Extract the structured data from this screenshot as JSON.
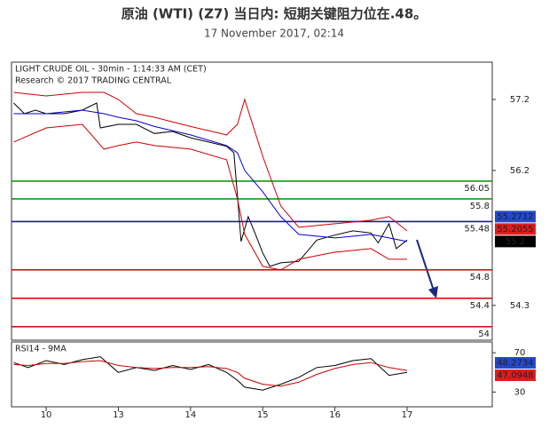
{
  "chart_data": [
    {
      "type": "line",
      "title": "原油 (WTI) (Z7) 当日内: 短期关键阻力位在.48。",
      "subtitle": "17 November 2017, 02:14",
      "annotations": [
        "LIGHT CRUDE OIL - 30min - 1:14:33 AM (CET)",
        "Research © 2017 TRADING CENTRAL"
      ],
      "xlim": [
        -0.48,
        6.18
      ],
      "ylim": [
        53.81,
        57.725
      ],
      "yticks": [
        57.2,
        56.2,
        54.3
      ],
      "levels": [
        {
          "value": 56.05,
          "color": "#139a13"
        },
        {
          "value": 55.8,
          "color": "#139a13"
        },
        {
          "value": 55.48,
          "color": "#1a1aa8"
        },
        {
          "value": 54.8,
          "color": "#d41414"
        },
        {
          "value": 54.4,
          "color": "#d41414"
        },
        {
          "value": 54,
          "color": "#d41414"
        }
      ],
      "price_tags": [
        {
          "value": 55.2712,
          "color": "#2448c8"
        },
        {
          "value": 55.2055,
          "color": "#e01c1c"
        },
        {
          "value": 55.2,
          "color": "#000000"
        }
      ],
      "series": [
        {
          "color": "#000000",
          "x": [
            -0.45,
            -0.3,
            -0.15,
            0,
            0.25,
            0.5,
            0.7,
            0.75,
            1,
            1.25,
            1.5,
            1.75,
            2,
            2.25,
            2.5,
            2.6,
            2.65,
            2.7,
            2.8,
            2.9,
            3,
            3.1,
            3.25,
            3.5,
            3.75,
            4,
            4.25,
            4.5,
            4.6,
            4.75,
            4.85,
            5
          ],
          "values": [
            57.15,
            57.0,
            57.05,
            57.0,
            57.0,
            57.05,
            57.15,
            56.8,
            56.85,
            56.85,
            56.72,
            56.75,
            56.66,
            56.6,
            56.54,
            56.45,
            55.85,
            55.2,
            55.55,
            55.3,
            55.04,
            54.85,
            54.9,
            54.92,
            55.22,
            55.29,
            55.35,
            55.32,
            55.18,
            55.45,
            55.1,
            55.22
          ]
        },
        {
          "color": "#cc0000",
          "x": [
            -0.45,
            0,
            0.5,
            0.8,
            1,
            1.25,
            1.5,
            2,
            2.5,
            2.65,
            2.75,
            3,
            3.25,
            3.5,
            4,
            4.5,
            4.75,
            5
          ],
          "values": [
            57.3,
            57.25,
            57.3,
            57.3,
            57.2,
            57.0,
            56.95,
            56.82,
            56.7,
            56.85,
            57.2,
            56.4,
            55.7,
            55.4,
            55.45,
            55.5,
            55.55,
            55.35
          ]
        },
        {
          "color": "#cc0000",
          "x": [
            -0.45,
            0,
            0.5,
            0.8,
            1,
            1.25,
            1.5,
            2,
            2.5,
            2.65,
            2.75,
            3,
            3.25,
            3.5,
            4,
            4.5,
            4.75,
            5
          ],
          "values": [
            56.6,
            56.8,
            56.85,
            56.5,
            56.55,
            56.6,
            56.55,
            56.5,
            56.35,
            55.8,
            55.3,
            54.85,
            54.8,
            54.95,
            55.05,
            55.1,
            54.95,
            54.95
          ]
        },
        {
          "color": "#0000cc",
          "x": [
            -0.45,
            0,
            0.5,
            0.8,
            1,
            1.25,
            1.5,
            2,
            2.5,
            2.65,
            2.75,
            3,
            3.25,
            3.5,
            4,
            4.5,
            4.75,
            5
          ],
          "values": [
            57.0,
            57.0,
            57.05,
            57.0,
            56.95,
            56.9,
            56.82,
            56.7,
            56.55,
            56.45,
            56.2,
            55.9,
            55.55,
            55.3,
            55.25,
            55.3,
            55.25,
            55.2
          ]
        }
      ]
    },
    {
      "type": "line",
      "annotations": [
        "RSI14 - 9MA"
      ],
      "xlim": [
        -0.48,
        6.18
      ],
      "ylim": [
        15,
        81
      ],
      "yticks": [
        70,
        30
      ],
      "xticks": [
        {
          "value": 0,
          "label": "10"
        },
        {
          "value": 1,
          "label": "13"
        },
        {
          "value": 2,
          "label": "14"
        },
        {
          "value": 3,
          "label": "15"
        },
        {
          "value": 4,
          "label": "16"
        },
        {
          "value": 5,
          "label": "17"
        }
      ],
      "price_tags": [
        {
          "value": 48.2734,
          "color": "#2448c8"
        },
        {
          "value": 47.0948,
          "color": "#e01c1c"
        }
      ],
      "series": [
        {
          "color": "#000000",
          "x": [
            -0.45,
            -0.25,
            0,
            0.25,
            0.5,
            0.75,
            1,
            1.25,
            1.5,
            1.75,
            2,
            2.25,
            2.5,
            2.65,
            2.75,
            3,
            3.25,
            3.5,
            3.75,
            4,
            4.25,
            4.5,
            4.75,
            5
          ],
          "values": [
            60,
            55,
            62,
            58,
            63,
            66,
            50,
            55,
            52,
            57,
            53,
            58,
            50,
            42,
            35,
            32,
            38,
            45,
            55,
            57,
            62,
            64,
            47,
            50
          ]
        },
        {
          "color": "#cc0000",
          "x": [
            -0.45,
            -0.25,
            0,
            0.25,
            0.5,
            0.75,
            1,
            1.25,
            1.5,
            1.75,
            2,
            2.25,
            2.5,
            2.65,
            2.75,
            3,
            3.25,
            3.5,
            3.75,
            4,
            4.25,
            4.5,
            4.75,
            5
          ],
          "values": [
            58,
            57,
            59,
            59,
            61,
            62,
            57,
            55,
            54,
            55,
            55,
            56,
            54,
            50,
            44,
            38,
            36,
            40,
            48,
            54,
            58,
            60,
            55,
            52
          ]
        }
      ]
    }
  ]
}
